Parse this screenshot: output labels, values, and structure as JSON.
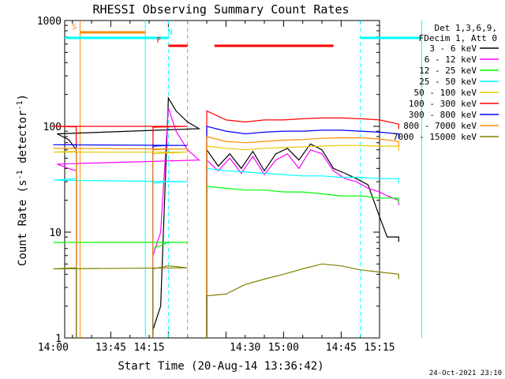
{
  "chart_data": {
    "type": "line",
    "title": "RHESSI Observing Summary Count Rates",
    "xlabel": "Start Time (20-Aug-14 13:36:42)",
    "ylabel_main": "Count Rate (s",
    "ylabel_sup1": "-1",
    "ylabel_mid": " detector",
    "ylabel_sup2": "-1",
    "ylabel_end": ")",
    "y_scale": "log",
    "ylim": [
      1,
      1000
    ],
    "xlim_minutes": [
      13.63,
      15.25
    ],
    "x_ticks": [
      {
        "t": 13.75,
        "label": "13:45"
      },
      {
        "t": 14.0,
        "label": "14:00"
      },
      {
        "t": 14.25,
        "label": "14:15"
      },
      {
        "t": 14.5,
        "label": "14:30"
      },
      {
        "t": 14.75,
        "label": "14:45"
      },
      {
        "t": 15.0,
        "label": "15:00"
      },
      {
        "t": 15.25,
        "label": "15:15"
      }
    ],
    "y_ticks": [
      {
        "v": 1,
        "label": "1"
      },
      {
        "v": 10,
        "label": "10"
      },
      {
        "v": 100,
        "label": "100"
      },
      {
        "v": 1000,
        "label": "1000"
      }
    ],
    "legend_header": [
      "Det 1,3,6,9,",
      "FDecim 1, Att 0"
    ],
    "legend_position": "right",
    "series": [
      {
        "name": "3 - 6 keV",
        "color": "#000000",
        "segA": [
          [
            13.86,
            1.2
          ],
          [
            13.88,
            2.0
          ],
          [
            13.9,
            185
          ],
          [
            13.92,
            140
          ],
          [
            13.95,
            110
          ],
          [
            13.98,
            95
          ],
          [
            14.01,
            85
          ],
          [
            14.04,
            75
          ],
          [
            14.06,
            60
          ]
        ],
        "segB": [
          [
            14.4,
            60
          ],
          [
            14.43,
            42
          ],
          [
            14.46,
            55
          ],
          [
            14.49,
            40
          ],
          [
            14.52,
            58
          ],
          [
            14.55,
            38
          ],
          [
            14.58,
            55
          ],
          [
            14.61,
            62
          ],
          [
            14.64,
            48
          ],
          [
            14.67,
            68
          ],
          [
            14.7,
            60
          ],
          [
            14.73,
            40
          ],
          [
            14.76,
            36
          ],
          [
            14.79,
            32
          ],
          [
            14.82,
            28
          ],
          [
            14.85,
            14
          ],
          [
            14.87,
            9
          ],
          [
            14.9,
            9
          ]
        ]
      },
      {
        "name": "6 - 12 keV",
        "color": "#ff00ff",
        "segA": [
          [
            13.86,
            6
          ],
          [
            13.88,
            10
          ],
          [
            13.9,
            150
          ],
          [
            13.92,
            90
          ],
          [
            13.95,
            60
          ],
          [
            13.98,
            48
          ],
          [
            14.01,
            44
          ],
          [
            14.04,
            40
          ],
          [
            14.06,
            38
          ]
        ],
        "segB": [
          [
            14.4,
            48
          ],
          [
            14.43,
            38
          ],
          [
            14.46,
            50
          ],
          [
            14.49,
            36
          ],
          [
            14.52,
            52
          ],
          [
            14.55,
            35
          ],
          [
            14.58,
            48
          ],
          [
            14.61,
            55
          ],
          [
            14.64,
            40
          ],
          [
            14.67,
            60
          ],
          [
            14.7,
            55
          ],
          [
            14.73,
            38
          ],
          [
            14.76,
            32
          ],
          [
            14.79,
            30
          ],
          [
            14.82,
            26
          ],
          [
            14.85,
            24
          ],
          [
            14.87,
            22
          ],
          [
            14.9,
            20
          ]
        ]
      },
      {
        "name": "12 - 25 keV",
        "color": "#00ff00",
        "segA": [
          [
            13.86,
            7
          ],
          [
            13.9,
            8
          ],
          [
            13.95,
            8
          ],
          [
            14.0,
            8
          ],
          [
            14.06,
            8
          ]
        ],
        "segB": [
          [
            14.4,
            27
          ],
          [
            14.45,
            26
          ],
          [
            14.5,
            25
          ],
          [
            14.55,
            25
          ],
          [
            14.6,
            24
          ],
          [
            14.65,
            24
          ],
          [
            14.7,
            23
          ],
          [
            14.75,
            22
          ],
          [
            14.8,
            22
          ],
          [
            14.85,
            21
          ],
          [
            14.9,
            21
          ]
        ]
      },
      {
        "name": "25 - 50 keV",
        "color": "#00ffff",
        "segA": [
          [
            13.86,
            29
          ],
          [
            13.9,
            30
          ],
          [
            13.95,
            30
          ],
          [
            14.0,
            31
          ],
          [
            14.06,
            32
          ]
        ],
        "segB": [
          [
            14.4,
            40
          ],
          [
            14.45,
            38
          ],
          [
            14.5,
            37
          ],
          [
            14.55,
            36
          ],
          [
            14.6,
            35
          ],
          [
            14.65,
            34
          ],
          [
            14.7,
            34
          ],
          [
            14.75,
            33
          ],
          [
            14.8,
            33
          ],
          [
            14.85,
            32
          ],
          [
            14.9,
            32
          ]
        ]
      },
      {
        "name": "50 - 100 keV",
        "color": "#e6c800",
        "segA": [
          [
            13.86,
            55
          ],
          [
            13.9,
            56
          ],
          [
            13.95,
            57
          ],
          [
            14.0,
            57
          ],
          [
            14.06,
            58
          ]
        ],
        "segB": [
          [
            14.4,
            65
          ],
          [
            14.45,
            62
          ],
          [
            14.5,
            60
          ],
          [
            14.55,
            62
          ],
          [
            14.6,
            63
          ],
          [
            14.65,
            64
          ],
          [
            14.7,
            65
          ],
          [
            14.75,
            66
          ],
          [
            14.8,
            66
          ],
          [
            14.85,
            65
          ],
          [
            14.9,
            65
          ]
        ]
      },
      {
        "name": "100 - 300 keV",
        "color": "#ff0000",
        "segA": [
          [
            13.86,
            98
          ],
          [
            13.9,
            99
          ],
          [
            13.95,
            100
          ],
          [
            14.0,
            100
          ],
          [
            14.06,
            99
          ]
        ],
        "segB": [
          [
            14.4,
            140
          ],
          [
            14.45,
            115
          ],
          [
            14.5,
            110
          ],
          [
            14.55,
            115
          ],
          [
            14.6,
            115
          ],
          [
            14.65,
            118
          ],
          [
            14.7,
            120
          ],
          [
            14.75,
            120
          ],
          [
            14.8,
            118
          ],
          [
            14.85,
            115
          ],
          [
            14.9,
            105
          ]
        ]
      },
      {
        "name": "300 - 800 keV",
        "color": "#0000ff",
        "segA": [
          [
            13.86,
            65
          ],
          [
            13.9,
            66
          ],
          [
            13.95,
            66
          ],
          [
            14.0,
            67
          ],
          [
            14.06,
            67
          ]
        ],
        "segB": [
          [
            14.4,
            100
          ],
          [
            14.45,
            90
          ],
          [
            14.5,
            85
          ],
          [
            14.55,
            88
          ],
          [
            14.6,
            90
          ],
          [
            14.65,
            90
          ],
          [
            14.7,
            92
          ],
          [
            14.75,
            92
          ],
          [
            14.8,
            90
          ],
          [
            14.85,
            88
          ],
          [
            14.9,
            85
          ]
        ]
      },
      {
        "name": "800 - 7000 keV",
        "color": "#ff8c00",
        "segA": [
          [
            13.86,
            60
          ],
          [
            13.9,
            61
          ],
          [
            13.95,
            61
          ],
          [
            14.0,
            62
          ],
          [
            14.06,
            62
          ]
        ],
        "segB": [
          [
            14.4,
            80
          ],
          [
            14.45,
            72
          ],
          [
            14.5,
            70
          ],
          [
            14.55,
            72
          ],
          [
            14.6,
            74
          ],
          [
            14.65,
            75
          ],
          [
            14.7,
            77
          ],
          [
            14.75,
            78
          ],
          [
            14.8,
            78
          ],
          [
            14.85,
            76
          ],
          [
            14.9,
            72
          ]
        ]
      },
      {
        "name": "7000 - 15000 keV",
        "color": "#808000",
        "segA": [
          [
            13.86,
            4.5
          ],
          [
            13.9,
            4.8
          ],
          [
            13.95,
            4.6
          ],
          [
            14.0,
            4.5
          ],
          [
            14.06,
            4.6
          ]
        ],
        "segB": [
          [
            14.4,
            2.5
          ],
          [
            14.45,
            2.6
          ],
          [
            14.5,
            3.2
          ],
          [
            14.55,
            3.6
          ],
          [
            14.6,
            4.0
          ],
          [
            14.65,
            4.5
          ],
          [
            14.7,
            5.0
          ],
          [
            14.75,
            4.8
          ],
          [
            14.8,
            4.4
          ],
          [
            14.85,
            4.2
          ],
          [
            14.9,
            4.0
          ]
        ]
      }
    ],
    "mode_bars": [
      {
        "label": "N",
        "color": "#00ffff",
        "start": 13.63,
        "end": 13.9,
        "label_at": 13.905
      },
      {
        "label": "F",
        "color": "#ff0000",
        "start": 13.9,
        "end": 13.95,
        "label_at": 13.875
      },
      {
        "label": "S",
        "color": "#ff8c00",
        "start": 14.07,
        "end": 14.24,
        "label_at": 14.055
      },
      {
        "label": "",
        "color": "#ff0000",
        "start": 14.42,
        "end": 14.73,
        "label_at": 14.42
      },
      {
        "label": "",
        "color": "#00ffff",
        "start": 14.96,
        "end": 15.2,
        "label_at": 14.96
      }
    ],
    "vlines": [
      {
        "t": 13.84,
        "color": "#00ffff",
        "style": "solid"
      },
      {
        "t": 13.9,
        "color": "#00ffff",
        "style": "dashed"
      },
      {
        "t": 14.07,
        "color": "#ff8c00",
        "style": "solid"
      },
      {
        "t": 14.35,
        "color": "#ff8c00",
        "style": "dashed"
      },
      {
        "t": 14.96,
        "color": "#00ffff",
        "style": "solid"
      },
      {
        "t": 15.2,
        "color": "#00ffff",
        "style": "dashed"
      }
    ],
    "timestamp": "24-Oct-2021 23:10"
  }
}
